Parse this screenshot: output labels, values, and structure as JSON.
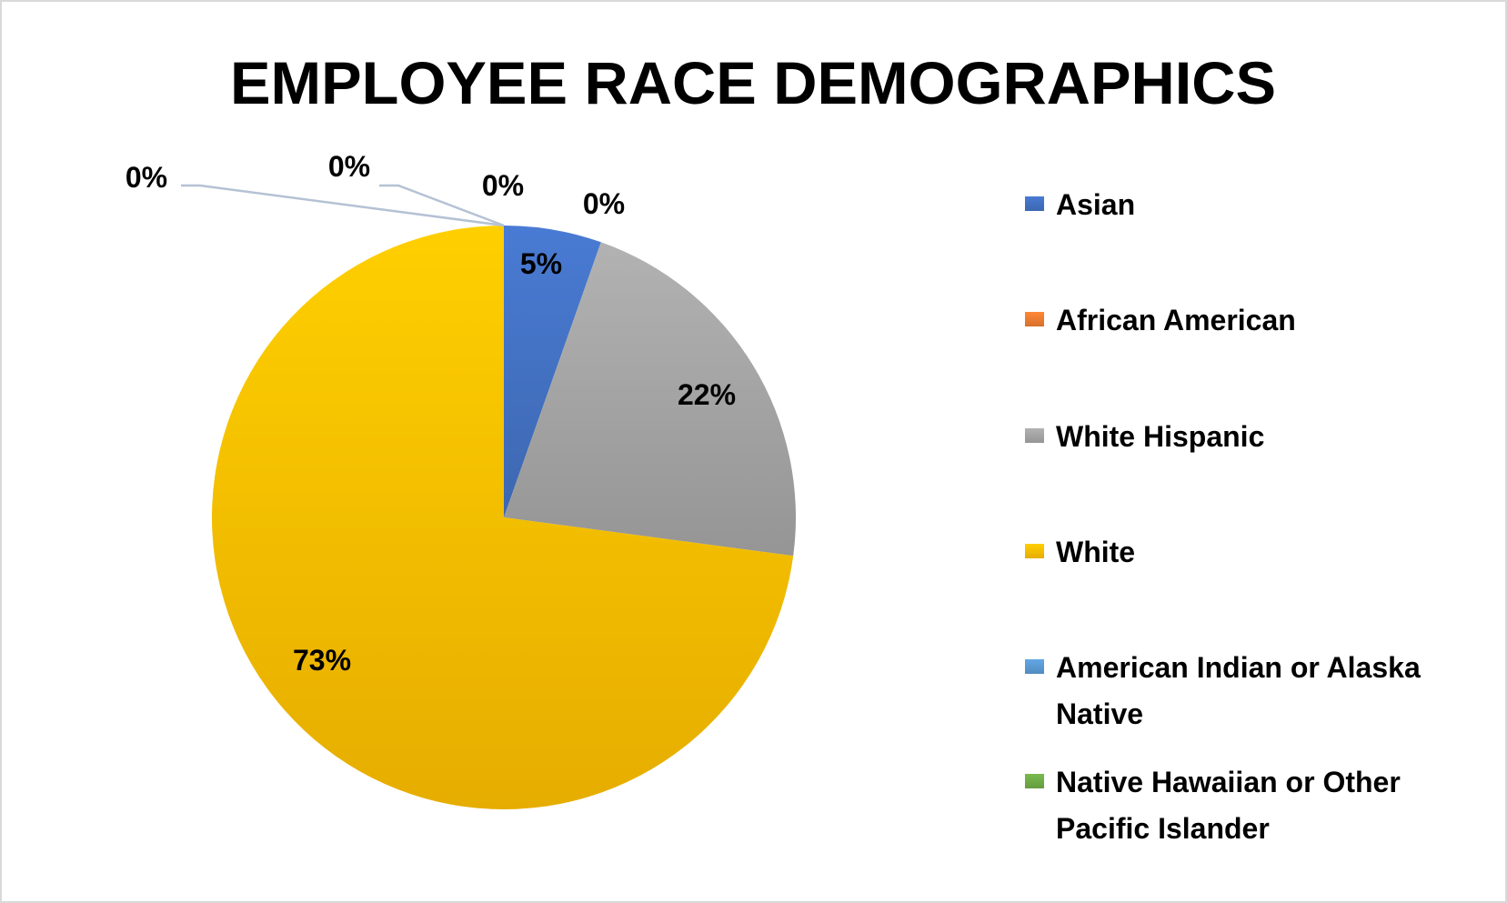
{
  "chart_data": {
    "type": "pie",
    "title": "EMPLOYEE RACE DEMOGRAPHICS",
    "categories": [
      "Asian",
      "African American",
      "White Hispanic",
      "White",
      "American Indian or Alaska Native",
      "Native Hawaiian or Other Pacific Islander"
    ],
    "values": [
      5.4,
      0,
      21.7,
      72.9,
      0,
      0
    ],
    "data_labels": [
      "5%",
      "0%",
      "22%",
      "73%",
      "0%",
      "0%"
    ],
    "extra_zero_label": "0%",
    "colors": [
      "#4472c4",
      "#ed7d31",
      "#a5a5a5",
      "#ffc000",
      "#5b9bd5",
      "#70ad47"
    ],
    "legend_position": "right",
    "legend_lines": [
      [
        "Asian"
      ],
      [
        "African American"
      ],
      [
        "White Hispanic"
      ],
      [
        "White"
      ],
      [
        "American Indian or Alaska",
        "Native"
      ],
      [
        "Native Hawaiian or Other",
        "Pacific Islander"
      ]
    ]
  }
}
